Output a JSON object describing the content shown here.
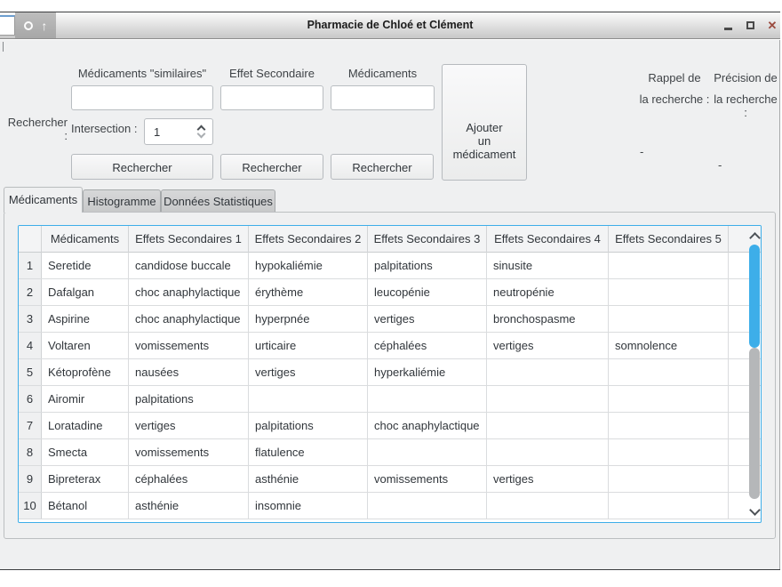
{
  "window": {
    "title": "Pharmacie de Chloé et Clément",
    "controls": {
      "close_glyph": "✕"
    },
    "icons": {
      "record": "ring-css-shape",
      "arrow_up": "↑",
      "minimize": "bar-css-shape",
      "maximize": "square-css-shape",
      "spin_up": "chevron-css",
      "spin_down": "chevron-css",
      "scroll_up": "chevron-css",
      "scroll_down": "chevron-css"
    }
  },
  "colors": {
    "accent_blue": "#3daee9",
    "panel_grey": "#eff0f1",
    "scroll_grey": "#b5b7b9"
  },
  "search": {
    "section_label": "Rechercher :",
    "fields": [
      {
        "label": "Médicaments \"similaires\"",
        "value": "",
        "button": "Rechercher"
      },
      {
        "label": "Effet Secondaire",
        "value": "",
        "button": "Rechercher"
      },
      {
        "label": "Médicaments",
        "value": "",
        "button": "Rechercher"
      }
    ],
    "intersection": {
      "label": "Intersection :",
      "value": "1"
    },
    "add_button": {
      "line1": "Ajouter",
      "line2": "un médicament"
    }
  },
  "metrics": {
    "recall": {
      "line1": "Rappel de",
      "line2": "la recherche :",
      "value": "-"
    },
    "precision": {
      "line1": "Précision de",
      "line2": "la recherche :",
      "value": "-"
    }
  },
  "tabs": [
    {
      "label": "Médicaments",
      "active": true
    },
    {
      "label": "Histogramme",
      "active": false
    },
    {
      "label": "Données Statistiques",
      "active": false
    }
  ],
  "table": {
    "columns": [
      "",
      "Médicaments",
      "Effets Secondaires 1",
      "Effets Secondaires 2",
      "Effets Secondaires 3",
      "Effets Secondaires 4",
      "Effets Secondaires 5"
    ],
    "rows": [
      {
        "num": "1",
        "cells": [
          "Seretide",
          "candidose buccale",
          "hypokaliémie",
          "palpitations",
          "sinusite",
          ""
        ]
      },
      {
        "num": "2",
        "cells": [
          "Dafalgan",
          "choc anaphylactique",
          "érythème",
          "leucopénie",
          "neutropénie",
          ""
        ]
      },
      {
        "num": "3",
        "cells": [
          "Aspirine",
          "choc anaphylactique",
          "hyperpnée",
          "vertiges",
          "bronchospasme",
          ""
        ]
      },
      {
        "num": "4",
        "cells": [
          "Voltaren",
          "vomissements",
          "urticaire",
          "céphalées",
          "vertiges",
          "somnolence"
        ]
      },
      {
        "num": "5",
        "cells": [
          "Kétoprofène",
          "nausées",
          "vertiges",
          "hyperkaliémie",
          "",
          ""
        ]
      },
      {
        "num": "6",
        "cells": [
          "Airomir",
          "palpitations",
          "",
          "",
          "",
          ""
        ]
      },
      {
        "num": "7",
        "cells": [
          "Loratadine",
          "vertiges",
          "palpitations",
          "choc anaphylactique",
          "",
          ""
        ]
      },
      {
        "num": "8",
        "cells": [
          "Smecta",
          "vomissements",
          "flatulence",
          "",
          "",
          ""
        ]
      },
      {
        "num": "9",
        "cells": [
          "Bipreterax",
          "céphalées",
          "asthénie",
          "vomissements",
          "vertiges",
          ""
        ]
      },
      {
        "num": "10",
        "cells": [
          "Bétanol",
          "asthénie",
          "insomnie",
          "",
          "",
          ""
        ]
      }
    ]
  }
}
